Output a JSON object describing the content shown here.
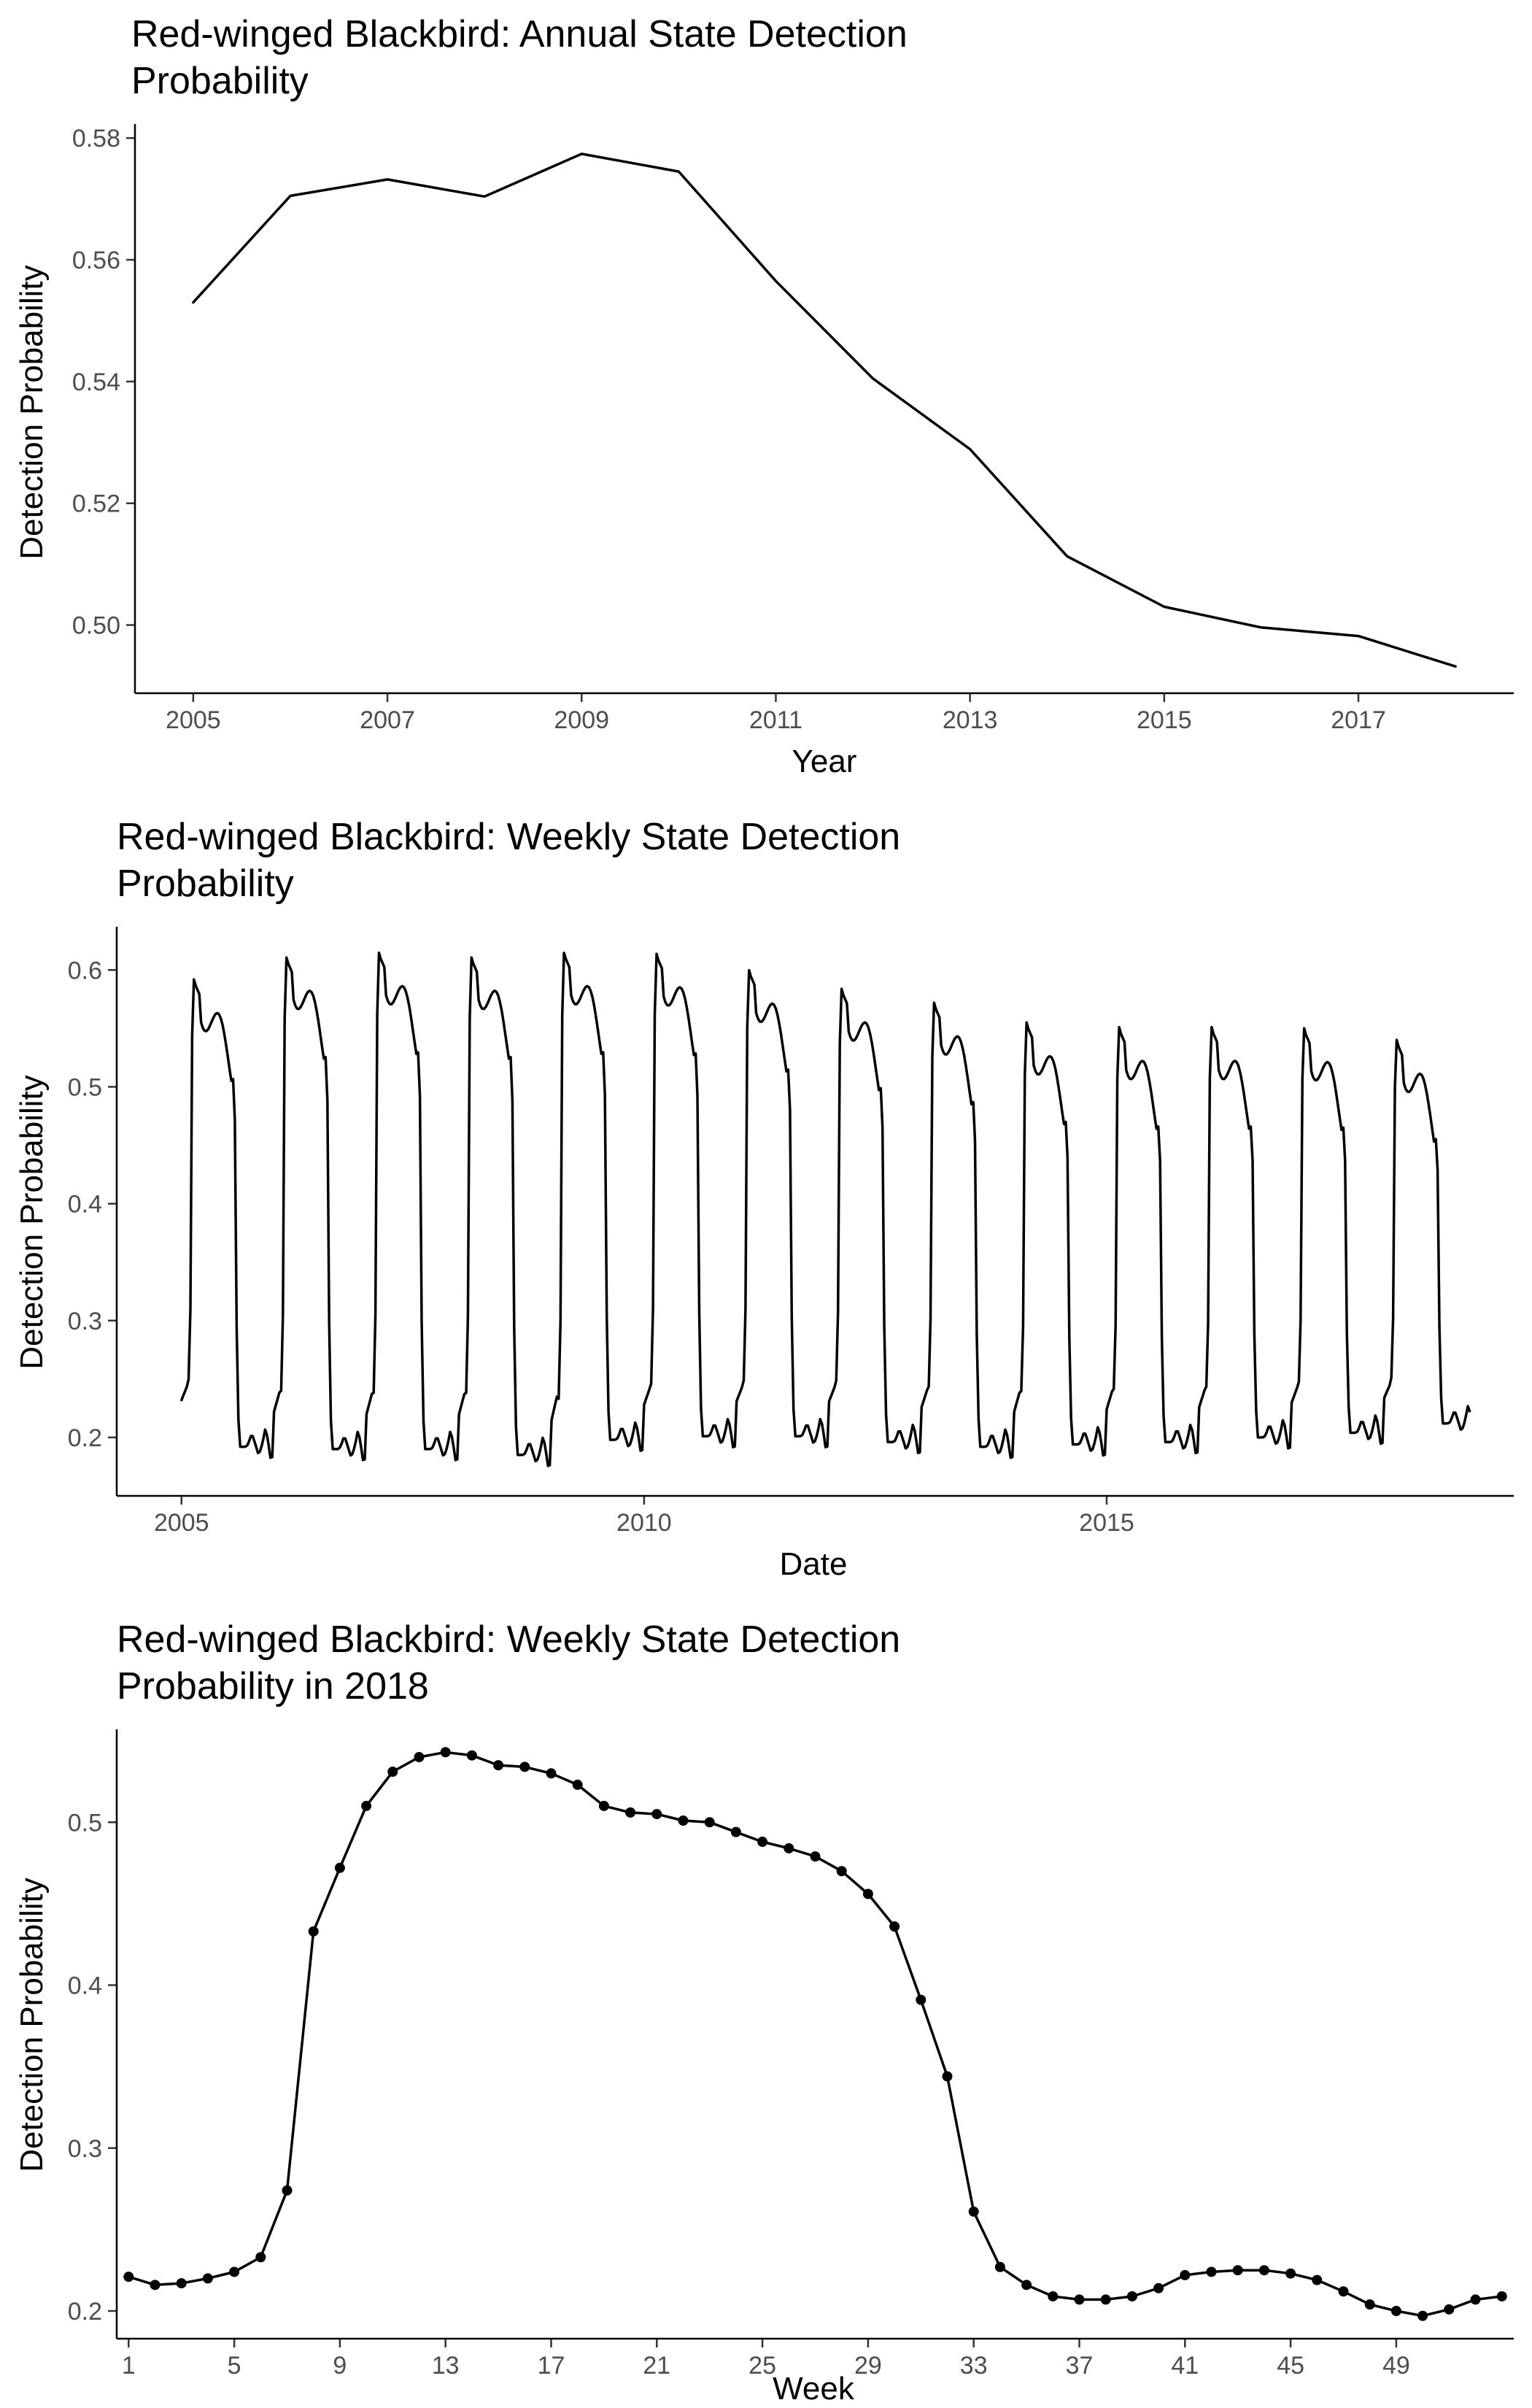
{
  "chart_data": [
    {
      "id": "annual",
      "type": "line",
      "title": "Red-winged Blackbird: Annual State Detection Probability",
      "title_lines": [
        "Red-winged Blackbird: Annual State Detection",
        "Probability"
      ],
      "xlabel": "Year",
      "ylabel": "Detection Probability",
      "xlim": [
        2004.4,
        2018.6
      ],
      "ylim": [
        0.4888,
        0.5823
      ],
      "xticks": [
        2005,
        2007,
        2009,
        2011,
        2013,
        2015,
        2017
      ],
      "xtick_labels": [
        "2005",
        "2007",
        "2009",
        "2011",
        "2013",
        "2015",
        "2017"
      ],
      "yticks": [
        0.5,
        0.52,
        0.54,
        0.56,
        0.58
      ],
      "ytick_labels": [
        "0.50",
        "0.52",
        "0.54",
        "0.56",
        "0.58"
      ],
      "markers": false,
      "grid": false,
      "x": [
        2005,
        2006,
        2007,
        2008,
        2009,
        2010,
        2011,
        2012,
        2013,
        2014,
        2015,
        2016,
        2017,
        2018
      ],
      "y": [
        0.553,
        0.5705,
        0.5732,
        0.5704,
        0.5774,
        0.5745,
        0.5565,
        0.5405,
        0.5289,
        0.5113,
        0.503,
        0.4996,
        0.4982,
        0.4932
      ]
    },
    {
      "id": "weekly",
      "type": "line",
      "title": "Red-winged Blackbird: Weekly State Detection Probability",
      "title_lines": [
        "Red-winged Blackbird: Weekly State Detection",
        "Probability"
      ],
      "xlabel": "Date",
      "ylabel": "Detection Probability",
      "xlim": [
        2004.3,
        2019.4
      ],
      "ylim": [
        0.15,
        0.637
      ],
      "xticks": [
        2005,
        2010,
        2015
      ],
      "xtick_labels": [
        "2005",
        "2010",
        "2015"
      ],
      "yticks": [
        0.2,
        0.3,
        0.4,
        0.5,
        0.6
      ],
      "ytick_labels": [
        "0.2",
        "0.3",
        "0.4",
        "0.5",
        "0.6"
      ],
      "markers": false,
      "grid": false,
      "season_peaks": [
        {
          "year": 2005,
          "peak": 0.594,
          "trough": 0.174
        },
        {
          "year": 2006,
          "peak": 0.613,
          "trough": 0.172
        },
        {
          "year": 2007,
          "peak": 0.617,
          "trough": 0.172
        },
        {
          "year": 2008,
          "peak": 0.613,
          "trough": 0.167
        },
        {
          "year": 2009,
          "peak": 0.617,
          "trough": 0.18
        },
        {
          "year": 2010,
          "peak": 0.616,
          "trough": 0.183
        },
        {
          "year": 2011,
          "peak": 0.602,
          "trough": 0.183
        },
        {
          "year": 2012,
          "peak": 0.586,
          "trough": 0.178
        },
        {
          "year": 2013,
          "peak": 0.574,
          "trough": 0.174
        },
        {
          "year": 2014,
          "peak": 0.557,
          "trough": 0.176
        },
        {
          "year": 2015,
          "peak": 0.553,
          "trough": 0.178
        },
        {
          "year": 2016,
          "peak": 0.553,
          "trough": 0.182
        },
        {
          "year": 2017,
          "peak": 0.552,
          "trough": 0.186
        },
        {
          "year": 2018,
          "peak": 0.542,
          "trough": 0.194
        }
      ]
    },
    {
      "id": "week2018",
      "type": "line",
      "title": "Red-winged Blackbird: Weekly State Detection Probability in 2018",
      "title_lines": [
        "Red-winged Blackbird: Weekly State Detection",
        "Probability in 2018"
      ],
      "xlabel": "Week",
      "ylabel": "Detection Probability",
      "xlim": [
        0.55,
        53.45
      ],
      "ylim": [
        0.183,
        0.557
      ],
      "xticks": [
        1,
        5,
        9,
        13,
        17,
        21,
        25,
        29,
        33,
        37,
        41,
        45,
        49
      ],
      "xtick_labels": [
        "1",
        "5",
        "9",
        "13",
        "17",
        "21",
        "25",
        "29",
        "33",
        "37",
        "41",
        "45",
        "49"
      ],
      "yticks": [
        0.2,
        0.3,
        0.4,
        0.5
      ],
      "ytick_labels": [
        "0.2",
        "0.3",
        "0.4",
        "0.5"
      ],
      "markers": true,
      "grid": false,
      "x": [
        1,
        2,
        3,
        4,
        5,
        6,
        7,
        8,
        9,
        10,
        11,
        12,
        13,
        14,
        15,
        16,
        17,
        18,
        19,
        20,
        21,
        22,
        23,
        24,
        25,
        26,
        27,
        28,
        29,
        30,
        31,
        32,
        33,
        34,
        35,
        36,
        37,
        38,
        39,
        40,
        41,
        42,
        43,
        44,
        45,
        46,
        47,
        48,
        49,
        50,
        51,
        52,
        53
      ],
      "y": [
        0.221,
        0.216,
        0.217,
        0.22,
        0.224,
        0.233,
        0.274,
        0.433,
        0.472,
        0.51,
        0.531,
        0.54,
        0.543,
        0.541,
        0.535,
        0.534,
        0.53,
        0.523,
        0.51,
        0.506,
        0.505,
        0.501,
        0.5,
        0.494,
        0.488,
        0.484,
        0.479,
        0.47,
        0.456,
        0.436,
        0.391,
        0.344,
        0.261,
        0.227,
        0.216,
        0.209,
        0.207,
        0.207,
        0.209,
        0.214,
        0.222,
        0.224,
        0.225,
        0.225,
        0.223,
        0.219,
        0.212,
        0.204,
        0.2,
        0.197,
        0.201,
        0.207,
        0.209
      ]
    }
  ]
}
